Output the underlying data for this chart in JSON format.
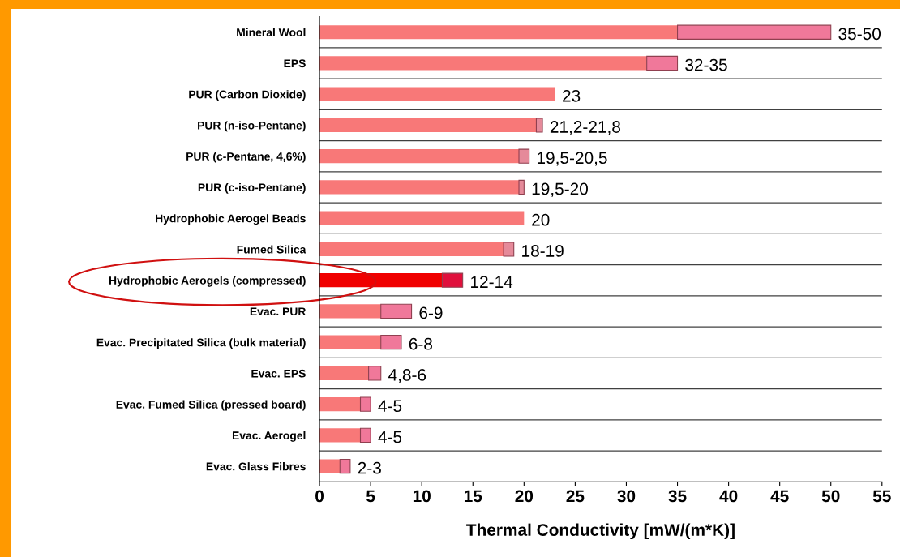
{
  "chart_data": {
    "type": "bar",
    "orientation": "horizontal",
    "stacked": true,
    "xlabel": "Thermal Conductivity [mW/(m*K)]",
    "categories": [
      "Mineral Wool",
      "EPS",
      "PUR (Carbon Dioxide)",
      "PUR (n-iso-Pentane)",
      "PUR (c-Pentane, 4,6%)",
      "PUR (c-iso-Pentane)",
      "Hydrophobic Aerogel Beads",
      "Fumed Silica",
      "Hydrophobic Aerogels (compressed)",
      "Evac. PUR",
      "Evac. Precipitated Silica (bulk material)",
      "Evac. EPS",
      "Evac. Fumed Silica (pressed board)",
      "Evac. Aerogel",
      "Evac. Glass Fibres"
    ],
    "series": [
      {
        "color": "#f87878",
        "colors": [
          "#f87878",
          "#f87878",
          "#f87878",
          "#f87878",
          "#f87878",
          "#f87878",
          "#f87878",
          "#f87878",
          "#f00000",
          "#f87878",
          "#f87878",
          "#f87878",
          "#f87878",
          "#f87878",
          "#f87878"
        ],
        "values": [
          35,
          32,
          23,
          21.2,
          19.5,
          19.5,
          20,
          18,
          12,
          6,
          6,
          4.8,
          4,
          4,
          2
        ]
      },
      {
        "color": "#f0789a",
        "colors": [
          "#f0789a",
          "#f0789a",
          "#f0789a",
          "#e58a9a",
          "#e58a9a",
          "#e58a9a",
          "#f0789a",
          "#e58a9a",
          "#e0103c",
          "#f0789a",
          "#f0789a",
          "#f0789a",
          "#f0789a",
          "#f0789a",
          "#f0789a"
        ],
        "values": [
          15,
          3,
          null,
          0.6,
          1,
          0.5,
          null,
          1,
          2,
          3,
          2,
          1.2,
          1,
          1,
          1
        ]
      }
    ],
    "totals": [
      "35-50",
      "32-35",
      "23",
      "21,2-21,8",
      "19,5-20,5",
      "19,5-20",
      "20",
      "18-19",
      "12-14",
      "6-9",
      "6-8",
      "4,8-6",
      "4-5",
      "4-5",
      "2-3"
    ],
    "xlim": [
      0,
      55
    ],
    "xticks": [
      0,
      5,
      10,
      15,
      20,
      25,
      30,
      35,
      40,
      45,
      50,
      55
    ],
    "grid": "y",
    "legend": false
  }
}
